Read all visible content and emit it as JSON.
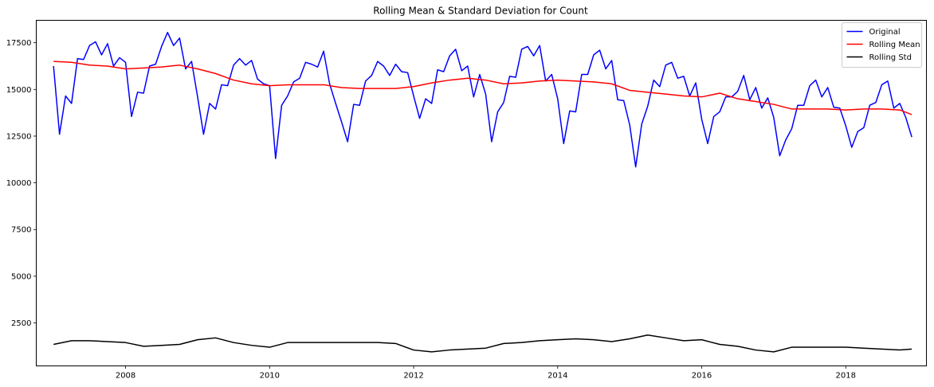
{
  "chart_data": {
    "type": "line",
    "title": "Rolling Mean & Standard Deviation for Count",
    "xlabel": "",
    "ylabel": "",
    "xlim": [
      2006.76,
      2019.12
    ],
    "ylim": [
      200,
      18700
    ],
    "x_ticks": [
      {
        "value": 2008,
        "label": "2008"
      },
      {
        "value": 2010,
        "label": "2010"
      },
      {
        "value": 2012,
        "label": "2012"
      },
      {
        "value": 2014,
        "label": "2014"
      },
      {
        "value": 2016,
        "label": "2016"
      },
      {
        "value": 2018,
        "label": "2018"
      }
    ],
    "y_ticks": [
      {
        "value": 2500,
        "label": "2500"
      },
      {
        "value": 5000,
        "label": "5000"
      },
      {
        "value": 7500,
        "label": "7500"
      },
      {
        "value": 10000,
        "label": "10000"
      },
      {
        "value": 12500,
        "label": "12500"
      },
      {
        "value": 15000,
        "label": "15000"
      },
      {
        "value": 17500,
        "label": "17500"
      }
    ],
    "grid": false,
    "legend_position": "top-right",
    "series": [
      {
        "name": "Original",
        "color": "#0000ff",
        "x": [
          2007.0,
          2007.083,
          2007.167,
          2007.25,
          2007.333,
          2007.417,
          2007.5,
          2007.583,
          2007.667,
          2007.75,
          2007.833,
          2007.917,
          2008.0,
          2008.083,
          2008.167,
          2008.25,
          2008.333,
          2008.417,
          2008.5,
          2008.583,
          2008.667,
          2008.75,
          2008.833,
          2008.917,
          2009.0,
          2009.083,
          2009.167,
          2009.25,
          2009.333,
          2009.417,
          2009.5,
          2009.583,
          2009.667,
          2009.75,
          2009.833,
          2009.917,
          2010.0,
          2010.083,
          2010.167,
          2010.25,
          2010.333,
          2010.417,
          2010.5,
          2010.583,
          2010.667,
          2010.75,
          2010.833,
          2010.917,
          2011.0,
          2011.083,
          2011.167,
          2011.25,
          2011.333,
          2011.417,
          2011.5,
          2011.583,
          2011.667,
          2011.75,
          2011.833,
          2011.917,
          2012.0,
          2012.083,
          2012.167,
          2012.25,
          2012.333,
          2012.417,
          2012.5,
          2012.583,
          2012.667,
          2012.75,
          2012.833,
          2012.917,
          2013.0,
          2013.083,
          2013.167,
          2013.25,
          2013.333,
          2013.417,
          2013.5,
          2013.583,
          2013.667,
          2013.75,
          2013.833,
          2013.917,
          2014.0,
          2014.083,
          2014.167,
          2014.25,
          2014.333,
          2014.417,
          2014.5,
          2014.583,
          2014.667,
          2014.75,
          2014.833,
          2014.917,
          2015.0,
          2015.083,
          2015.167,
          2015.25,
          2015.333,
          2015.417,
          2015.5,
          2015.583,
          2015.667,
          2015.75,
          2015.833,
          2015.917,
          2016.0,
          2016.083,
          2016.167,
          2016.25,
          2016.333,
          2016.417,
          2016.5,
          2016.583,
          2016.667,
          2016.75,
          2016.833,
          2016.917,
          2017.0,
          2017.083,
          2017.167,
          2017.25,
          2017.333,
          2017.417,
          2017.5,
          2017.583,
          2017.667,
          2017.75,
          2017.833,
          2017.917,
          2018.0,
          2018.083,
          2018.167,
          2018.25,
          2018.333,
          2018.417,
          2018.5,
          2018.583,
          2018.667,
          2018.75,
          2018.833,
          2018.917
        ],
        "y": [
          16250,
          12600,
          14650,
          14250,
          16650,
          16600,
          17350,
          17550,
          16850,
          17450,
          16250,
          16700,
          16450,
          13550,
          14850,
          14800,
          16250,
          16350,
          17300,
          18050,
          17350,
          17750,
          16100,
          16500,
          14600,
          12600,
          14250,
          13950,
          15250,
          15200,
          16300,
          16650,
          16300,
          16550,
          15550,
          15300,
          15200,
          11300,
          14150,
          14650,
          15400,
          15600,
          16450,
          16350,
          16200,
          17050,
          15300,
          14250,
          13250,
          12200,
          14200,
          14150,
          15450,
          15750,
          16500,
          16250,
          15750,
          16350,
          15950,
          15900,
          14650,
          13450,
          14500,
          14250,
          16050,
          15950,
          16800,
          17150,
          16000,
          16250,
          14600,
          15800,
          14750,
          12200,
          13800,
          14300,
          15700,
          15650,
          17150,
          17300,
          16800,
          17350,
          15450,
          15800,
          14500,
          12100,
          13850,
          13800,
          15800,
          15800,
          16850,
          17100,
          16100,
          16550,
          14450,
          14400,
          13100,
          10850,
          13150,
          14100,
          15500,
          15150,
          16300,
          16450,
          15600,
          15700,
          14650,
          15350,
          13400,
          12100,
          13550,
          13800,
          14600,
          14600,
          14900,
          15750,
          14450,
          15100,
          14000,
          14550,
          13500,
          11450,
          12300,
          12900,
          14150,
          14150,
          15200,
          15500,
          14600,
          15100,
          14050,
          14000,
          13050,
          11900,
          12750,
          12950,
          14150,
          14300,
          15250,
          15450,
          14000,
          14250,
          13500,
          12450
        ]
      },
      {
        "name": "Rolling Mean",
        "color": "#ff0000",
        "x": [
          2007.0,
          2007.25,
          2007.5,
          2007.75,
          2008.0,
          2008.25,
          2008.5,
          2008.75,
          2009.0,
          2009.25,
          2009.5,
          2009.75,
          2010.0,
          2010.25,
          2010.5,
          2010.75,
          2011.0,
          2011.25,
          2011.5,
          2011.75,
          2012.0,
          2012.25,
          2012.5,
          2012.75,
          2013.0,
          2013.25,
          2013.5,
          2013.75,
          2014.0,
          2014.25,
          2014.5,
          2014.75,
          2015.0,
          2015.25,
          2015.5,
          2015.75,
          2016.0,
          2016.25,
          2016.5,
          2016.75,
          2017.0,
          2017.25,
          2017.5,
          2017.75,
          2018.0,
          2018.25,
          2018.5,
          2018.75,
          2018.917
        ],
        "y": [
          16500,
          16450,
          16300,
          16250,
          16100,
          16150,
          16200,
          16300,
          16100,
          15850,
          15500,
          15300,
          15200,
          15250,
          15250,
          15250,
          15100,
          15050,
          15050,
          15050,
          15150,
          15350,
          15500,
          15600,
          15500,
          15300,
          15350,
          15450,
          15500,
          15450,
          15400,
          15300,
          14950,
          14850,
          14750,
          14650,
          14600,
          14800,
          14500,
          14350,
          14200,
          13950,
          13950,
          13950,
          13900,
          13950,
          13950,
          13900,
          13650
        ]
      },
      {
        "name": "Rolling Std",
        "color": "#000000",
        "x": [
          2007.0,
          2007.25,
          2007.5,
          2007.75,
          2008.0,
          2008.25,
          2008.5,
          2008.75,
          2009.0,
          2009.25,
          2009.5,
          2009.75,
          2010.0,
          2010.25,
          2010.5,
          2010.75,
          2011.0,
          2011.25,
          2011.5,
          2011.75,
          2012.0,
          2012.25,
          2012.5,
          2012.75,
          2013.0,
          2013.25,
          2013.5,
          2013.75,
          2014.0,
          2014.25,
          2014.5,
          2014.75,
          2015.0,
          2015.25,
          2015.5,
          2015.75,
          2016.0,
          2016.25,
          2016.5,
          2016.75,
          2017.0,
          2017.25,
          2017.5,
          2017.75,
          2018.0,
          2018.25,
          2018.5,
          2018.75,
          2018.917
        ],
        "y": [
          1350,
          1550,
          1550,
          1500,
          1450,
          1250,
          1300,
          1350,
          1600,
          1700,
          1450,
          1300,
          1200,
          1450,
          1450,
          1450,
          1450,
          1450,
          1450,
          1400,
          1050,
          950,
          1050,
          1100,
          1150,
          1400,
          1450,
          1550,
          1600,
          1650,
          1600,
          1500,
          1650,
          1850,
          1700,
          1550,
          1600,
          1350,
          1250,
          1050,
          950,
          1200,
          1200,
          1200,
          1200,
          1150,
          1100,
          1050,
          1100
        ]
      }
    ]
  }
}
